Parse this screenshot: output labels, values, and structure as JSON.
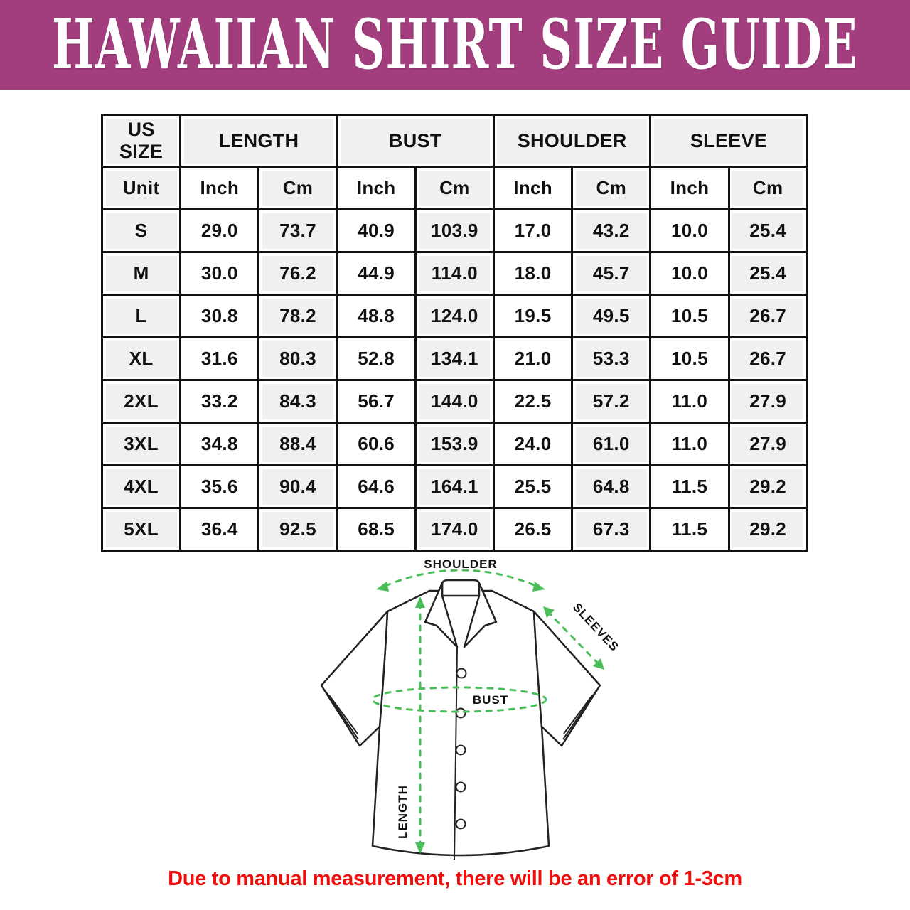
{
  "banner": {
    "title": "HAWAIIAN SHIRT SIZE GUIDE"
  },
  "table": {
    "col_groups": [
      "US SIZE",
      "LENGTH",
      "BUST",
      "SHOULDER",
      "SLEEVE"
    ],
    "unit_row": [
      "Unit",
      "Inch",
      "Cm",
      "Inch",
      "Cm",
      "Inch",
      "Cm",
      "Inch",
      "Cm"
    ],
    "rows": [
      {
        "size": "S",
        "values": [
          "29.0",
          "73.7",
          "40.9",
          "103.9",
          "17.0",
          "43.2",
          "10.0",
          "25.4"
        ]
      },
      {
        "size": "M",
        "values": [
          "30.0",
          "76.2",
          "44.9",
          "114.0",
          "18.0",
          "45.7",
          "10.0",
          "25.4"
        ]
      },
      {
        "size": "L",
        "values": [
          "30.8",
          "78.2",
          "48.8",
          "124.0",
          "19.5",
          "49.5",
          "10.5",
          "26.7"
        ]
      },
      {
        "size": "XL",
        "values": [
          "31.6",
          "80.3",
          "52.8",
          "134.1",
          "21.0",
          "53.3",
          "10.5",
          "26.7"
        ]
      },
      {
        "size": "2XL",
        "values": [
          "33.2",
          "84.3",
          "56.7",
          "144.0",
          "22.5",
          "57.2",
          "11.0",
          "27.9"
        ]
      },
      {
        "size": "3XL",
        "values": [
          "34.8",
          "88.4",
          "60.6",
          "153.9",
          "24.0",
          "61.0",
          "11.0",
          "27.9"
        ]
      },
      {
        "size": "4XL",
        "values": [
          "35.6",
          "90.4",
          "64.6",
          "164.1",
          "25.5",
          "64.8",
          "11.5",
          "29.2"
        ]
      },
      {
        "size": "5XL",
        "values": [
          "36.4",
          "92.5",
          "68.5",
          "174.0",
          "26.5",
          "67.3",
          "11.5",
          "29.2"
        ]
      }
    ]
  },
  "diagram": {
    "labels": {
      "shoulder": "SHOULDER",
      "sleeves": "SLEEVES",
      "bust": "BUST",
      "length": "LENGTH"
    }
  },
  "footer": {
    "note": "Due to manual measurement, there will be an error of 1-3cm"
  },
  "colors": {
    "banner_background": "#A23E7D",
    "measurement_green": "#4CBE59",
    "note_red": "#F20D0D",
    "table_cell_gray": "#F0F0F0",
    "table_border_black": "#111111"
  }
}
